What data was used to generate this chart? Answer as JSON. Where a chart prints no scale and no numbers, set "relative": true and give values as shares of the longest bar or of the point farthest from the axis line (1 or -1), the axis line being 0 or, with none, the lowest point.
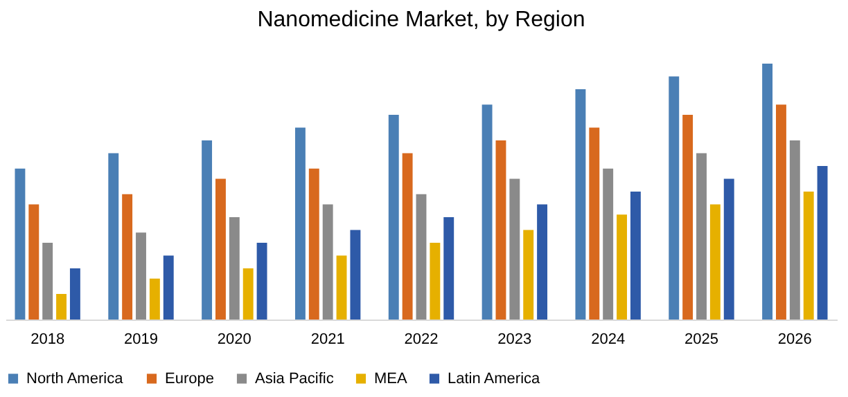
{
  "chart_data": {
    "type": "bar",
    "title": "Nanomedicine Market, by Region",
    "relative": true,
    "legend": "bottom",
    "categories": [
      "2018",
      "2019",
      "2020",
      "2021",
      "2022",
      "2023",
      "2024",
      "2025",
      "2026"
    ],
    "series": [
      {
        "name": "North America",
        "color": "#4a7fb5",
        "values": [
          0.59,
          0.65,
          0.7,
          0.75,
          0.8,
          0.84,
          0.9,
          0.95,
          1
        ]
      },
      {
        "name": "Europe",
        "color": "#d8691e",
        "values": [
          0.45,
          0.49,
          0.55,
          0.59,
          0.65,
          0.7,
          0.75,
          0.8,
          0.84
        ]
      },
      {
        "name": "Asia Pacific",
        "color": "#8a8a8a",
        "values": [
          0.3,
          0.34,
          0.4,
          0.45,
          0.49,
          0.55,
          0.59,
          0.65,
          0.7
        ]
      },
      {
        "name": "MEA",
        "color": "#e6b000",
        "values": [
          0.1,
          0.16,
          0.2,
          0.25,
          0.3,
          0.35,
          0.41,
          0.45,
          0.5
        ]
      },
      {
        "name": "Latin America",
        "color": "#2e5aa8",
        "values": [
          0.2,
          0.25,
          0.3,
          0.35,
          0.4,
          0.45,
          0.5,
          0.55,
          0.6
        ]
      }
    ]
  }
}
